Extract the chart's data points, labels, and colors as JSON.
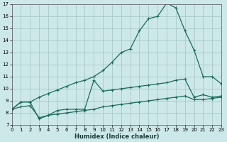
{
  "xlabel": "Humidex (Indice chaleur)",
  "bg_color": "#cde8e8",
  "grid_color": "#aac8c8",
  "line_color": "#1a6b5a",
  "x_min": 0,
  "x_max": 23,
  "y_min": 7,
  "y_max": 17,
  "line_main_x": [
    0,
    1,
    2,
    3,
    4,
    5,
    6,
    7,
    8,
    9,
    10,
    11,
    12,
    13,
    14,
    15,
    16,
    17,
    18,
    19,
    20,
    21,
    22,
    23
  ],
  "line_main_y": [
    8.3,
    8.9,
    8.9,
    9.3,
    9.6,
    9.9,
    10.2,
    10.5,
    10.7,
    11.0,
    11.5,
    12.2,
    13.0,
    13.3,
    14.8,
    15.8,
    16.0,
    17.1,
    16.7,
    14.8,
    13.2,
    11.0,
    11.0,
    10.4
  ],
  "line_mid_x": [
    0,
    1,
    2,
    3,
    4,
    5,
    6,
    7,
    8,
    9,
    10,
    11,
    12,
    13,
    14,
    15,
    16,
    17,
    18,
    19,
    20,
    21,
    22,
    23
  ],
  "line_mid_y": [
    8.3,
    8.9,
    8.9,
    7.5,
    7.8,
    8.2,
    8.3,
    8.3,
    8.3,
    10.7,
    9.8,
    9.9,
    10.0,
    10.1,
    10.2,
    10.3,
    10.4,
    10.5,
    10.7,
    10.8,
    9.3,
    9.5,
    9.3,
    9.4
  ],
  "line_low_x": [
    0,
    1,
    2,
    3,
    4,
    5,
    6,
    7,
    8,
    9,
    10,
    11,
    12,
    13,
    14,
    15,
    16,
    17,
    18,
    19,
    20,
    21,
    22,
    23
  ],
  "line_low_y": [
    8.3,
    8.5,
    8.6,
    7.6,
    7.8,
    7.9,
    8.0,
    8.1,
    8.2,
    8.3,
    8.5,
    8.6,
    8.7,
    8.8,
    8.9,
    9.0,
    9.1,
    9.2,
    9.3,
    9.4,
    9.1,
    9.1,
    9.2,
    9.3
  ]
}
